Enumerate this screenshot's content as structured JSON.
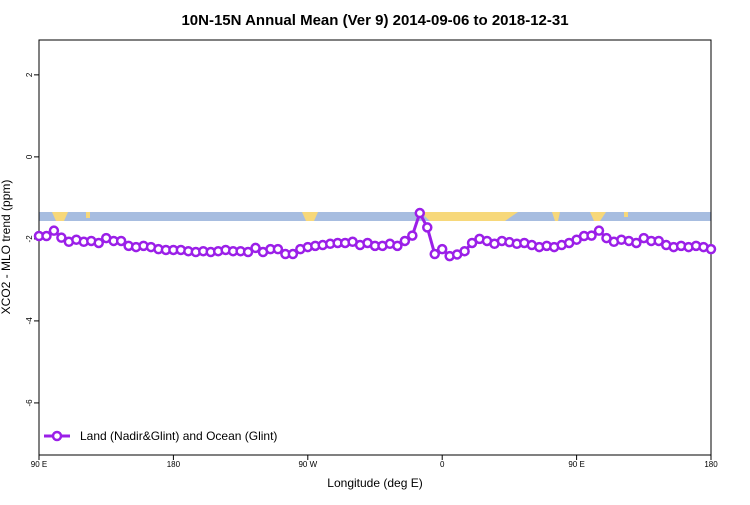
{
  "chart_data": {
    "type": "line",
    "title": "10N-15N Annual Mean (Ver 9)   2014-09-06 to 2018-12-31",
    "x_label": "Longitude (deg E)",
    "y_label": "XCO2 - MLO trend (ppm)",
    "x": [
      90,
      95,
      100,
      105,
      110,
      115,
      120,
      125,
      130,
      135,
      140,
      145,
      150,
      155,
      160,
      165,
      170,
      175,
      180,
      185,
      190,
      195,
      200,
      205,
      210,
      215,
      220,
      225,
      230,
      235,
      240,
      245,
      250,
      255,
      260,
      265,
      270,
      275,
      280,
      285,
      290,
      295,
      300,
      305,
      310,
      315,
      320,
      325,
      330,
      335,
      340,
      345,
      350,
      355,
      360,
      365,
      370,
      375,
      380,
      385,
      390,
      395,
      400,
      405,
      410,
      415,
      420,
      425,
      430,
      435,
      440,
      445,
      450,
      455,
      460,
      465,
      470,
      475,
      480,
      485,
      490,
      495,
      500,
      505,
      510,
      515,
      520,
      525,
      530,
      535,
      540
    ],
    "series": [
      {
        "name": "Land (Nadir&Glint) and Ocean (Glint)",
        "color": "#9b1fe8",
        "values": [
          -1.93,
          -1.93,
          -1.8,
          -1.97,
          -2.07,
          -2.02,
          -2.07,
          -2.05,
          -2.1,
          -1.98,
          -2.05,
          -2.05,
          -2.17,
          -2.2,
          -2.17,
          -2.2,
          -2.25,
          -2.27,
          -2.27,
          -2.27,
          -2.3,
          -2.32,
          -2.3,
          -2.32,
          -2.3,
          -2.27,
          -2.3,
          -2.3,
          -2.32,
          -2.22,
          -2.32,
          -2.25,
          -2.25,
          -2.37,
          -2.37,
          -2.25,
          -2.2,
          -2.17,
          -2.15,
          -2.12,
          -2.1,
          -2.1,
          -2.07,
          -2.15,
          -2.1,
          -2.17,
          -2.17,
          -2.12,
          -2.17,
          -2.05,
          -1.92,
          -1.37,
          -1.72,
          -2.37,
          -2.25,
          -2.42,
          -2.38,
          -2.3,
          -2.1,
          -2,
          -2.05,
          -2.12,
          -2.05,
          -2.08,
          -2.12,
          -2.1,
          -2.15,
          -2.2,
          -2.17,
          -2.2,
          -2.15,
          -2.1,
          -2.02,
          -1.93,
          -1.92,
          -1.8,
          -1.98,
          -2.07,
          -2.02,
          -2.05,
          -2.1,
          -1.98,
          -2.05,
          -2.05,
          -2.15,
          -2.2,
          -2.17,
          -2.2,
          -2.17,
          -2.2,
          -2.25
        ]
      }
    ],
    "xlim": [
      90,
      540
    ],
    "xticks": [
      {
        "value": 90,
        "label": "90 E"
      },
      180,
      {
        "value": 270,
        "label": "90 W"
      },
      {
        "value": 360,
        "label": "0"
      },
      {
        "value": 450,
        "label": "90 E"
      },
      {
        "value": 540,
        "label": "180"
      }
    ],
    "ylim": [
      2.85,
      -7.27
    ],
    "yticks": [
      2,
      0,
      -2,
      -4,
      -6
    ],
    "legend": "bottomleft"
  }
}
